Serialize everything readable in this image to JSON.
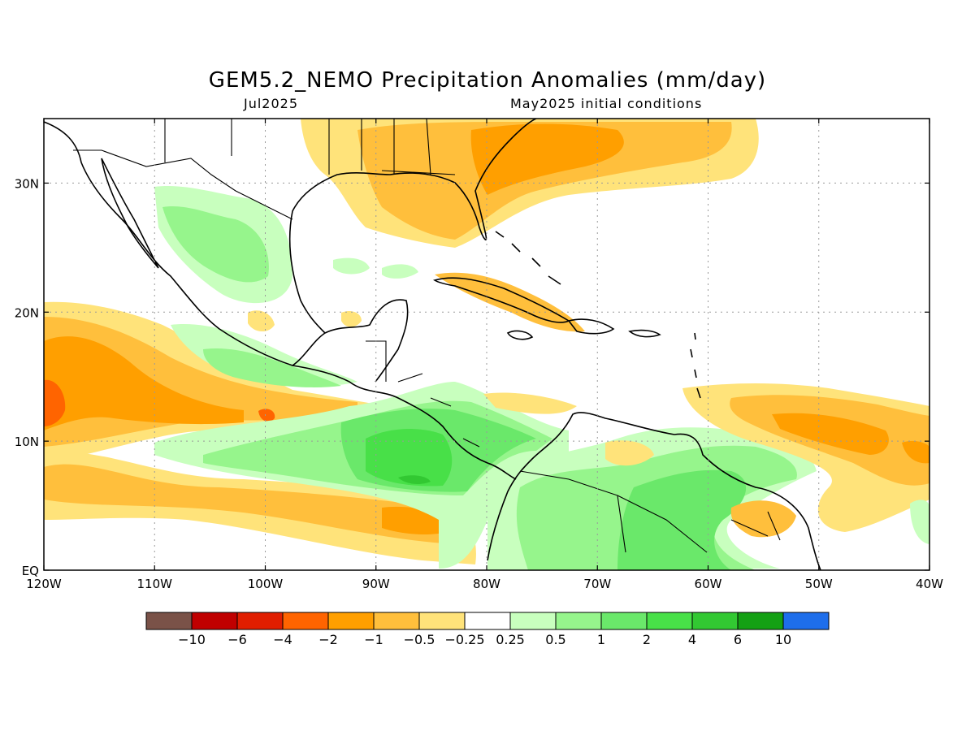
{
  "title": "GEM5.2_NEMO Precipitation Anomalies (mm/day)",
  "subtitle_left": "Jul2025",
  "subtitle_right": "May2025 initial conditions",
  "map": {
    "lon_range": [
      -120,
      -40
    ],
    "lat_range": [
      0,
      35
    ],
    "lon_ticks": [
      {
        "value": -120,
        "label": "120W"
      },
      {
        "value": -110,
        "label": "110W"
      },
      {
        "value": -100,
        "label": "100W"
      },
      {
        "value": -90,
        "label": "90W"
      },
      {
        "value": -80,
        "label": "80W"
      },
      {
        "value": -70,
        "label": "70W"
      },
      {
        "value": -60,
        "label": "60W"
      },
      {
        "value": -50,
        "label": "50W"
      },
      {
        "value": -40,
        "label": "40W"
      }
    ],
    "lat_ticks": [
      {
        "value": 0,
        "label": "EQ"
      },
      {
        "value": 10,
        "label": "10N"
      },
      {
        "value": 20,
        "label": "20N"
      },
      {
        "value": 30,
        "label": "30N"
      }
    ],
    "grid": true
  },
  "colorbar": {
    "colors": [
      "#7a5248",
      "#c00000",
      "#e01e00",
      "#ff6400",
      "#ff9f00",
      "#ffbf3c",
      "#ffe37a",
      "#ffffff",
      "#c8ffbe",
      "#96f58c",
      "#6ae86a",
      "#48e048",
      "#32c832",
      "#14a014",
      "#1e6eeb"
    ],
    "labels": [
      "−10",
      "−6",
      "−4",
      "−2",
      "−1",
      "−0.5",
      "−0.25",
      "0.25",
      "0.5",
      "1",
      "2",
      "4",
      "6",
      "10"
    ]
  }
}
